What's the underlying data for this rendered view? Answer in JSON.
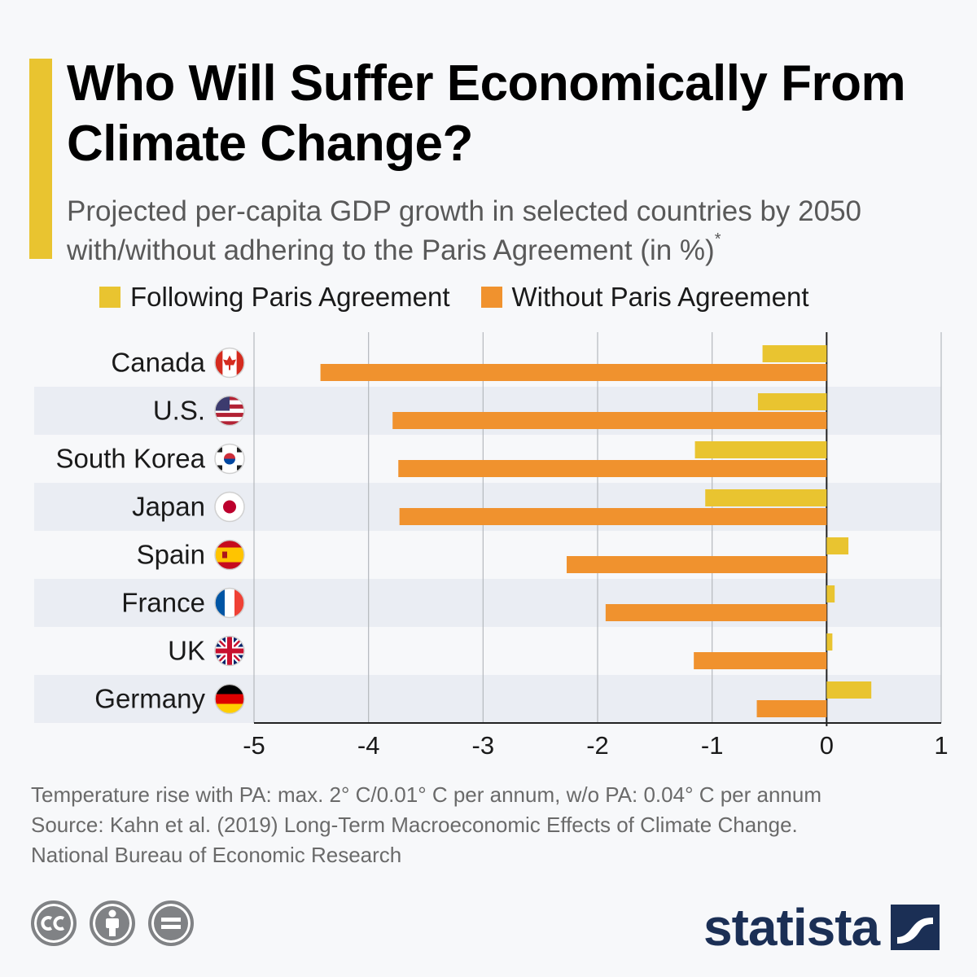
{
  "header": {
    "title": "Who Will Suffer Economically From Climate Change?",
    "subtitle": "Projected per-capita GDP growth in selected countries by 2050 with/without adhering to the Paris Agreement (in %)",
    "subtitle_marker": "*"
  },
  "colors": {
    "accent": "#e9c430",
    "following": "#e9c430",
    "without": "#f0922e",
    "band": "#eaedf3",
    "brand": "#1b2f55"
  },
  "chart_data": {
    "type": "bar",
    "orientation": "horizontal",
    "categories": [
      "Canada",
      "U.S.",
      "South Korea",
      "Japan",
      "Spain",
      "France",
      "UK",
      "Germany"
    ],
    "flag_icons": [
      "canada-flag-icon",
      "us-flag-icon",
      "south-korea-flag-icon",
      "japan-flag-icon",
      "spain-flag-icon",
      "france-flag-icon",
      "uk-flag-icon",
      "germany-flag-icon"
    ],
    "series": [
      {
        "name": "Following Paris Agreement",
        "values": [
          -0.56,
          -0.6,
          -1.15,
          -1.06,
          0.19,
          0.07,
          0.05,
          0.39
        ]
      },
      {
        "name": "Without Paris Agreement",
        "values": [
          -4.42,
          -3.79,
          -3.74,
          -3.73,
          -2.27,
          -1.93,
          -1.16,
          -0.61
        ]
      }
    ],
    "xlim": [
      -5,
      1
    ],
    "xticks": [
      "-5",
      "-4",
      "-3",
      "-2",
      "-1",
      "0",
      "1"
    ],
    "xlabel": "",
    "ylabel": "",
    "grid": true,
    "legend_position": "top"
  },
  "footnote": {
    "line1": "Temperature rise with PA: max. 2° C/0.01° C per annum, w/o PA: 0.04° C per annum",
    "line2": "Source: Kahn et al. (2019) Long-Term Macroeconomic Effects of Climate Change.",
    "line3": "National Bureau of Economic Research"
  },
  "license_icons": [
    "cc-icon",
    "attribution-icon",
    "no-derivatives-icon"
  ],
  "brand": {
    "name": "statista"
  }
}
